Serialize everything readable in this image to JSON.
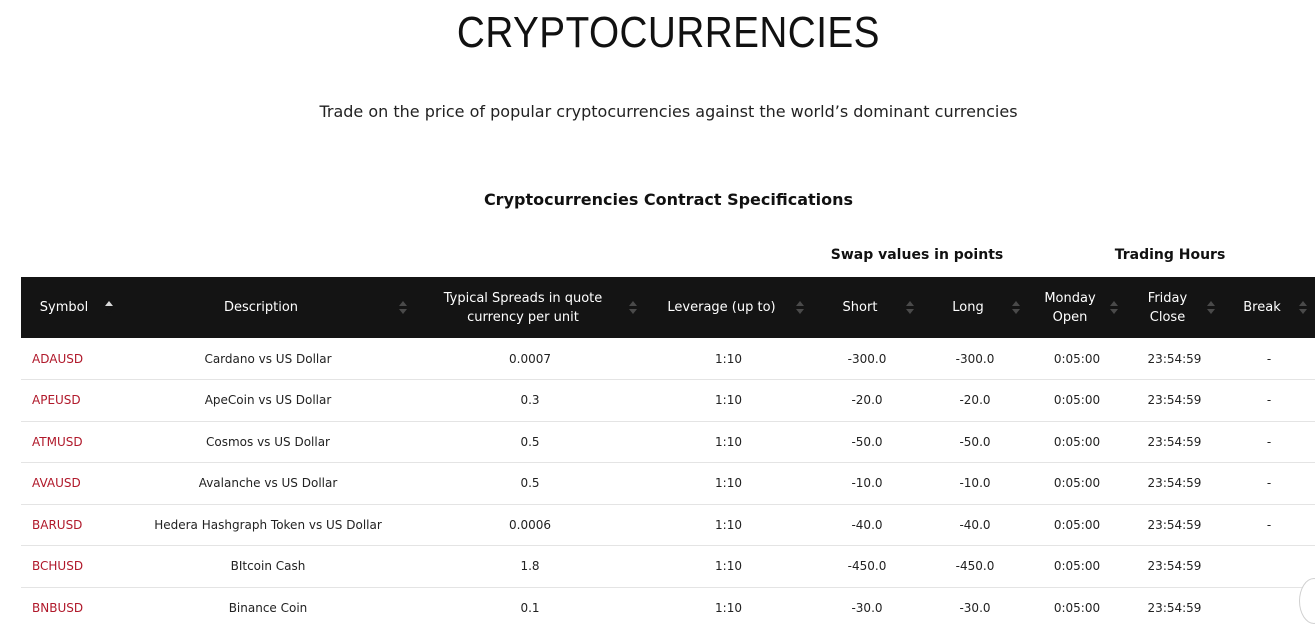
{
  "header": {
    "title": "CRYPTOCURRENCIES",
    "subtitle": "Trade on the price of popular cryptocurrencies against the world’s dominant currencies",
    "section_title": "Cryptocurrencies Contract Specifications"
  },
  "groups": {
    "swap": "Swap values in points",
    "hours": "Trading Hours"
  },
  "columns": [
    {
      "label": "Symbol"
    },
    {
      "label": "Description"
    },
    {
      "label": "Typical Spreads in quote currency per unit"
    },
    {
      "label": "Leverage (up to)"
    },
    {
      "label": "Short"
    },
    {
      "label": "Long"
    },
    {
      "label": "Monday Open"
    },
    {
      "label": "Friday Close"
    },
    {
      "label": "Break"
    }
  ],
  "rows": [
    {
      "symbol": "ADAUSD",
      "description": "Cardano vs US Dollar",
      "spread": "0.0007",
      "leverage": "1:10",
      "short": "-300.0",
      "long": "-300.0",
      "monday_open": "0:05:00",
      "friday_close": "23:54:59",
      "break": "-"
    },
    {
      "symbol": "APEUSD",
      "description": "ApeCoin vs US Dollar",
      "spread": "0.3",
      "leverage": "1:10",
      "short": "-20.0",
      "long": "-20.0",
      "monday_open": "0:05:00",
      "friday_close": "23:54:59",
      "break": "-"
    },
    {
      "symbol": "ATMUSD",
      "description": "Cosmos vs US Dollar",
      "spread": "0.5",
      "leverage": "1:10",
      "short": "-50.0",
      "long": "-50.0",
      "monday_open": "0:05:00",
      "friday_close": "23:54:59",
      "break": "-"
    },
    {
      "symbol": "AVAUSD",
      "description": "Avalanche vs US Dollar",
      "spread": "0.5",
      "leverage": "1:10",
      "short": "-10.0",
      "long": "-10.0",
      "monday_open": "0:05:00",
      "friday_close": "23:54:59",
      "break": "-"
    },
    {
      "symbol": "BARUSD",
      "description": "Hedera Hashgraph Token vs US Dollar",
      "spread": "0.0006",
      "leverage": "1:10",
      "short": "-40.0",
      "long": "-40.0",
      "monday_open": "0:05:00",
      "friday_close": "23:54:59",
      "break": "-"
    },
    {
      "symbol": "BCHUSD",
      "description": "BItcoin Cash",
      "spread": "1.8",
      "leverage": "1:10",
      "short": "-450.0",
      "long": "-450.0",
      "monday_open": "0:05:00",
      "friday_close": "23:54:59",
      "break": ""
    },
    {
      "symbol": "BNBUSD",
      "description": "Binance Coin",
      "spread": "0.1",
      "leverage": "1:10",
      "short": "-30.0",
      "long": "-30.0",
      "monday_open": "0:05:00",
      "friday_close": "23:54:59",
      "break": ""
    }
  ],
  "colors": {
    "header_bg": "#141414",
    "symbol_link": "#b0182a",
    "row_divider": "#e4e4e4"
  },
  "sort": {
    "column": "Symbol",
    "direction": "ascending"
  }
}
